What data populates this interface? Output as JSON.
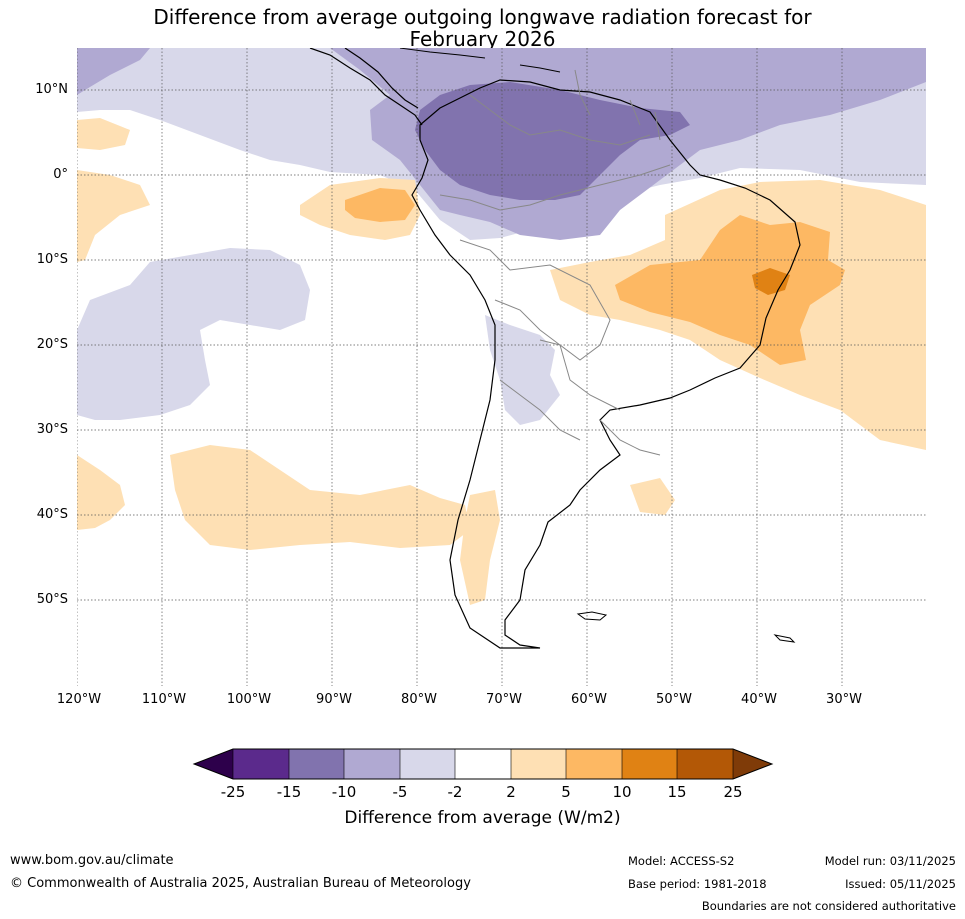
{
  "title": {
    "line1": "Difference from average outgoing longwave radiation forecast for",
    "line2": "February 2026"
  },
  "map": {
    "lat_labels": [
      "10°N",
      "0°",
      "10°S",
      "20°S",
      "30°S",
      "40°S",
      "50°S"
    ],
    "lon_labels": [
      "120°W",
      "110°W",
      "100°W",
      "90°W",
      "80°W",
      "70°W",
      "60°W",
      "50°W",
      "40°W",
      "30°W"
    ]
  },
  "colorbar": {
    "tick_labels": [
      "-25",
      "-15",
      "-10",
      "-5",
      "-2",
      "2",
      "5",
      "10",
      "15",
      "25"
    ],
    "colors": {
      "lt_-25": "#2d004b",
      "-25_-15": "#5b2a8c",
      "-15_-10": "#8173ae",
      "-10_-5": "#b0a9d2",
      "-5_-2": "#d8d8ea",
      "-2_2": "#ffffff",
      "2_5": "#fee0b4",
      "5_10": "#fdb863",
      "10_15": "#e08214",
      "15_25": "#b35806",
      "gt_25": "#7f3b08"
    },
    "title": "Difference from average (W/m2)"
  },
  "footer": {
    "website": "www.bom.gov.au/climate",
    "copyright": "© Commonwealth of Australia 2025, Australian Bureau of Meteorology",
    "model": "Model: ACCESS-S2",
    "base_period": "Base period: 1981-2018",
    "model_run": "Model run: 03/11/2025",
    "issued": "Issued: 05/11/2025",
    "disclaimer": "Boundaries are not considered authoritative"
  }
}
